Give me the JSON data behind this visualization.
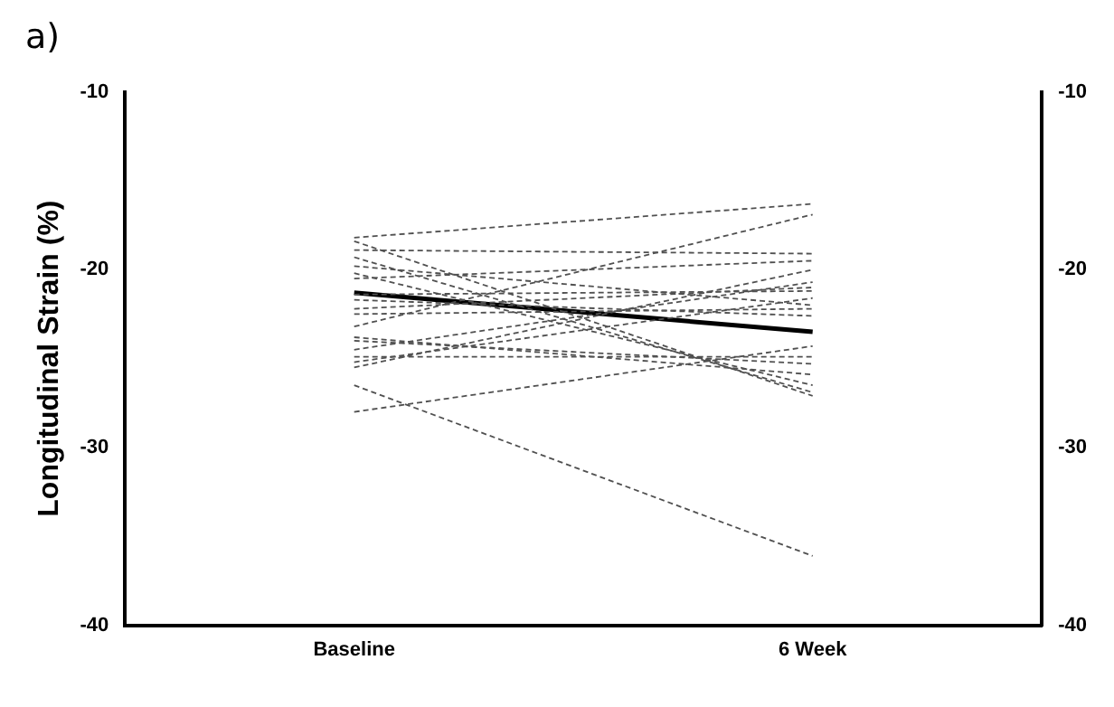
{
  "chart_data": {
    "type": "line",
    "title": "a)",
    "ylabel": "Longitudinal Strain (%)",
    "categories": [
      "Baseline",
      "6 Week"
    ],
    "ylim": [
      -40,
      -10
    ],
    "yticks": [
      -40,
      -30,
      -20,
      -10
    ],
    "y2lim": [
      -40,
      -10
    ],
    "y2ticks": [
      -40,
      -30,
      -20,
      -10
    ],
    "grid": false,
    "legend": false,
    "marker": "none",
    "series": [
      {
        "color": "#505050",
        "line_style": "dashed",
        "values": [
          -18.2,
          -16.3
        ]
      },
      {
        "color": "#505050",
        "line_style": "dashed",
        "values": [
          -18.4,
          -27.1
        ]
      },
      {
        "color": "#505050",
        "line_style": "dashed",
        "values": [
          -18.9,
          -19.1
        ]
      },
      {
        "color": "#505050",
        "line_style": "dashed",
        "values": [
          -19.3,
          -26.9
        ]
      },
      {
        "color": "#505050",
        "line_style": "dashed",
        "values": [
          -19.8,
          -22.0
        ]
      },
      {
        "color": "#505050",
        "line_style": "dashed",
        "values": [
          -20.2,
          -26.5
        ]
      },
      {
        "color": "#505050",
        "line_style": "dashed",
        "values": [
          -20.5,
          -19.5
        ]
      },
      {
        "color": "#505050",
        "line_style": "dashed",
        "values": [
          -21.4,
          -21.2
        ]
      },
      {
        "color": "#505050",
        "line_style": "dashed",
        "values": [
          -21.7,
          -22.6
        ]
      },
      {
        "color": "#505050",
        "line_style": "dashed",
        "values": [
          -22.2,
          -21.0
        ]
      },
      {
        "color": "#505050",
        "line_style": "dashed",
        "values": [
          -22.5,
          -22.2
        ]
      },
      {
        "color": "#505050",
        "line_style": "dashed",
        "values": [
          -23.2,
          -16.9
        ]
      },
      {
        "color": "#505050",
        "line_style": "dashed",
        "values": [
          -23.8,
          -25.9
        ]
      },
      {
        "color": "#505050",
        "line_style": "dashed",
        "values": [
          -24.0,
          -25.3
        ]
      },
      {
        "color": "#505050",
        "line_style": "dashed",
        "values": [
          -24.5,
          -20.7
        ]
      },
      {
        "color": "#505050",
        "line_style": "dashed",
        "values": [
          -24.9,
          -24.9
        ]
      },
      {
        "color": "#505050",
        "line_style": "dashed",
        "values": [
          -25.2,
          -21.6
        ]
      },
      {
        "color": "#505050",
        "line_style": "dashed",
        "values": [
          -25.5,
          -20.0
        ]
      },
      {
        "color": "#505050",
        "line_style": "dashed",
        "values": [
          -26.5,
          -36.1
        ]
      },
      {
        "color": "#505050",
        "line_style": "dashed",
        "values": [
          -28.0,
          -24.3
        ]
      },
      {
        "color": "#000000",
        "line_style": "solid",
        "values": [
          -21.3,
          -23.5
        ]
      }
    ]
  }
}
